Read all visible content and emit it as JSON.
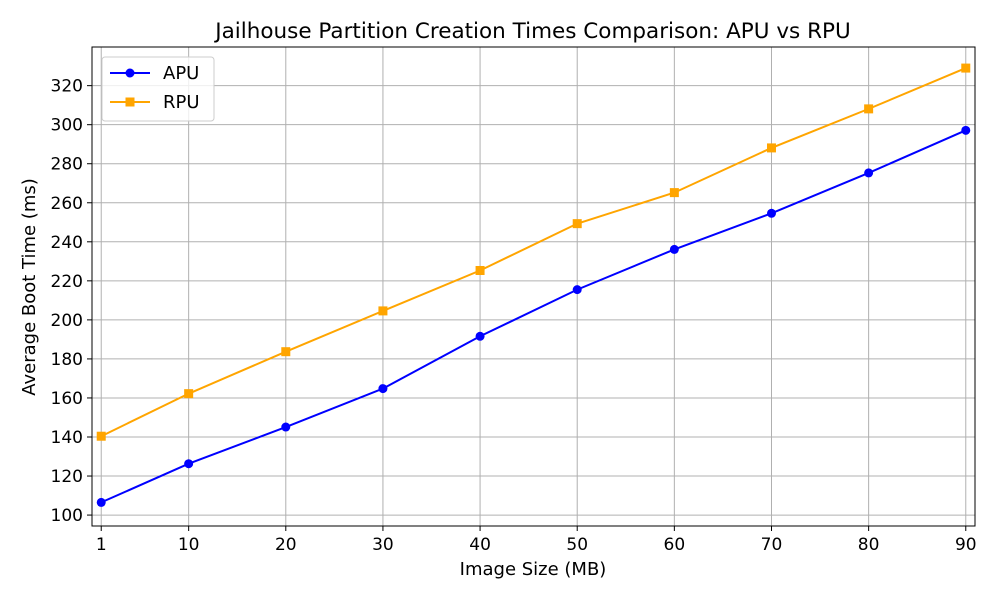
{
  "chart_data": {
    "type": "line",
    "title": "Jailhouse Partition Creation Times Comparison: APU vs RPU",
    "xlabel": "Image Size (MB)",
    "ylabel": "Average Boot Time (ms)",
    "x": [
      1,
      10,
      20,
      30,
      40,
      50,
      60,
      70,
      80,
      90
    ],
    "xticks": [
      1,
      10,
      20,
      30,
      40,
      50,
      60,
      70,
      80,
      90
    ],
    "yticks": [
      100,
      120,
      140,
      160,
      180,
      200,
      220,
      240,
      260,
      280,
      300,
      320
    ],
    "xlim": [
      0.05,
      90.95
    ],
    "ylim": [
      94.4,
      339.8
    ],
    "grid": true,
    "legend_position": "top-left",
    "series": [
      {
        "name": "APU",
        "color": "#0000ff",
        "marker": "circle",
        "values": [
          106.5,
          126.3,
          145.1,
          164.8,
          191.6,
          215.5,
          236.1,
          254.6,
          275.3,
          297.1
        ]
      },
      {
        "name": "RPU",
        "color": "#ffa500",
        "marker": "square",
        "values": [
          140.4,
          162.2,
          183.7,
          204.6,
          225.3,
          249.3,
          265.2,
          288.1,
          308.1,
          329.0
        ]
      }
    ]
  }
}
